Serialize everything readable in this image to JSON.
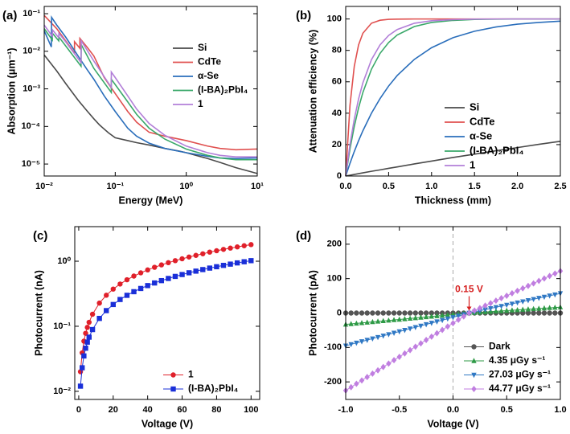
{
  "chart_data": [
    {
      "panel_label": "(a)",
      "type": "line",
      "xlabel": "Energy (MeV)",
      "ylabel": "Absorption (μm⁻¹)",
      "xlog": true,
      "ylog": true,
      "xlim": [
        0.01,
        10
      ],
      "ylim": [
        4.8e-06,
        0.156
      ],
      "xticks": [
        {
          "value": 0.01,
          "label": "10⁻²"
        },
        {
          "value": 0.1,
          "label": "10⁻¹"
        },
        {
          "value": 1,
          "label": "10⁰"
        },
        {
          "value": 10,
          "label": "10¹"
        }
      ],
      "yticks": [
        {
          "value": 1e-05,
          "label": "10⁻⁵"
        },
        {
          "value": 0.0001,
          "label": "10⁻⁴"
        },
        {
          "value": 0.001,
          "label": "10⁻³"
        },
        {
          "value": 0.01,
          "label": "10⁻²"
        },
        {
          "value": 0.1,
          "label": "10⁻¹"
        }
      ],
      "legend": "upper right",
      "series": [
        {
          "name": "Si",
          "color": "#4a4a4a",
          "x": [
            0.01,
            0.015,
            0.02,
            0.03,
            0.04,
            0.05,
            0.06,
            0.08,
            0.1,
            0.15,
            0.2,
            0.3,
            0.5,
            0.8,
            1,
            2,
            3,
            5,
            8,
            10
          ],
          "values": [
            0.008,
            0.003,
            0.0014,
            0.0005,
            0.00026,
            0.00016,
            0.00011,
            6.8e-05,
            5e-05,
            4.2e-05,
            3.7e-05,
            3.2e-05,
            2.6e-05,
            2.2e-05,
            2e-05,
            1.4e-05,
            1.1e-05,
            8e-06,
            6.3e-06,
            5.6e-06
          ]
        },
        {
          "name": "CdTe",
          "color": "#e0504f",
          "x": [
            0.01,
            0.015,
            0.02,
            0.0267,
            0.0267,
            0.0318,
            0.0318,
            0.04,
            0.05,
            0.07,
            0.1,
            0.15,
            0.2,
            0.3,
            0.5,
            1,
            2,
            3,
            5,
            10
          ],
          "values": [
            0.09,
            0.04,
            0.019,
            0.009,
            0.018,
            0.012,
            0.022,
            0.013,
            0.0075,
            0.002,
            0.00075,
            0.00025,
            0.00013,
            7e-05,
            5.5e-05,
            4.2e-05,
            3e-05,
            2.6e-05,
            2.4e-05,
            2.5e-05
          ]
        },
        {
          "name": "α-Se",
          "color": "#2a6ebb",
          "x": [
            0.01,
            0.0126,
            0.0127,
            0.015,
            0.02,
            0.03,
            0.04,
            0.05,
            0.07,
            0.1,
            0.15,
            0.2,
            0.3,
            0.5,
            1,
            2,
            3,
            5,
            10
          ],
          "values": [
            0.035,
            0.013,
            0.08,
            0.05,
            0.024,
            0.0075,
            0.0033,
            0.0018,
            0.00065,
            0.00025,
            9e-05,
            5.5e-05,
            3.6e-05,
            2.6e-05,
            2e-05,
            1.6e-05,
            1.45e-05,
            1.4e-05,
            1.45e-05
          ]
        },
        {
          "name": "(I-BA)₂PbI₄",
          "color": "#3aa86a",
          "x": [
            0.01,
            0.013,
            0.0131,
            0.016,
            0.0161,
            0.02,
            0.033,
            0.0332,
            0.05,
            0.088,
            0.0881,
            0.1,
            0.15,
            0.2,
            0.3,
            0.5,
            1,
            2,
            3,
            5,
            10
          ],
          "values": [
            0.04,
            0.02,
            0.03,
            0.019,
            0.024,
            0.014,
            0.004,
            0.015,
            0.0035,
            0.0008,
            0.0018,
            0.0013,
            0.00045,
            0.00021,
            9e-05,
            4.6e-05,
            2.5e-05,
            1.7e-05,
            1.45e-05,
            1.3e-05,
            1.3e-05
          ]
        },
        {
          "name": "1",
          "color": "#b27fd8",
          "x": [
            0.01,
            0.013,
            0.0131,
            0.016,
            0.0161,
            0.02,
            0.033,
            0.0332,
            0.05,
            0.088,
            0.0881,
            0.1,
            0.15,
            0.2,
            0.3,
            0.5,
            1,
            2,
            3,
            5,
            10
          ],
          "values": [
            0.05,
            0.025,
            0.037,
            0.023,
            0.03,
            0.018,
            0.005,
            0.019,
            0.0055,
            0.0011,
            0.0028,
            0.002,
            0.00065,
            0.00029,
            0.00012,
            5.8e-05,
            3e-05,
            2e-05,
            1.7e-05,
            1.55e-05,
            1.55e-05
          ]
        }
      ]
    },
    {
      "panel_label": "(b)",
      "type": "line",
      "xlabel": "Thickness (mm)",
      "ylabel": "Attenuation efficiency (%)",
      "xlim": [
        0,
        2.5
      ],
      "ylim": [
        0,
        108
      ],
      "xticks": [
        {
          "value": 0,
          "label": "0.0"
        },
        0.5,
        {
          "value": 1,
          "label": "1.0"
        },
        1.5,
        {
          "value": 2,
          "label": "2.0"
        },
        2.5
      ],
      "yticks": [
        0,
        20,
        40,
        60,
        80,
        100
      ],
      "legend": "lower right",
      "x": [
        0,
        0.05,
        0.1,
        0.15,
        0.2,
        0.3,
        0.4,
        0.5,
        0.6,
        0.8,
        1.0,
        1.25,
        1.5,
        1.75,
        2.0,
        2.25,
        2.5
      ],
      "series": [
        {
          "name": "Si",
          "color": "#4a4a4a",
          "values": [
            0,
            0.5,
            1.0,
            1.5,
            2.0,
            3.0,
            3.9,
            4.9,
            5.8,
            7.7,
            9.5,
            11.8,
            13.9,
            16.1,
            18.1,
            20.2,
            22.1
          ]
        },
        {
          "name": "CdTe",
          "color": "#e0504f",
          "values": [
            0,
            45.1,
            69.9,
            83.5,
            90.9,
            97.3,
            99.2,
            99.8,
            99.9,
            100,
            100,
            100,
            100,
            100,
            100,
            100,
            100
          ]
        },
        {
          "name": "α-Se",
          "color": "#2a6ebb",
          "values": [
            0,
            8.1,
            15.6,
            22.5,
            28.8,
            40.0,
            49.3,
            57.3,
            64.0,
            74.3,
            81.7,
            88.1,
            92.2,
            94.9,
            96.7,
            97.8,
            98.6
          ]
        },
        {
          "name": "(I-BA)₂PbI₄",
          "color": "#3aa86a",
          "values": [
            0,
            17.3,
            31.6,
            43.4,
            53.2,
            68.0,
            78.1,
            85.0,
            89.8,
            95.2,
            97.8,
            99.1,
            99.7,
            99.9,
            100,
            100,
            100
          ]
        },
        {
          "name": "1",
          "color": "#b27fd8",
          "values": [
            0,
            20.2,
            36.2,
            49.1,
            59.3,
            74.1,
            83.5,
            89.5,
            93.3,
            97.3,
            98.9,
            99.6,
            99.9,
            100,
            100,
            100,
            100
          ]
        }
      ]
    },
    {
      "panel_label": "(c)",
      "type": "line",
      "xlabel": "Voltage (V)",
      "ylabel": "Photocurrent (nA)",
      "ylog": true,
      "xlim": [
        -2.3,
        105
      ],
      "ylim": [
        0.0075,
        3.4
      ],
      "xticks": [
        0,
        20,
        40,
        60,
        80,
        100
      ],
      "yticks": [
        {
          "value": 0.01,
          "label": "10⁻²"
        },
        {
          "value": 0.1,
          "label": "10⁻¹"
        },
        {
          "value": 1,
          "label": "10⁰"
        }
      ],
      "legend": "lower right",
      "x": [
        1,
        2,
        3,
        4,
        5,
        6,
        8,
        12,
        16,
        20,
        24,
        28,
        32,
        36,
        40,
        44,
        48,
        52,
        56,
        60,
        64,
        68,
        72,
        76,
        80,
        84,
        88,
        92,
        96,
        100
      ],
      "series": [
        {
          "name": "1",
          "color": "#e0202a",
          "marker": "circle",
          "values": [
            0.02,
            0.039,
            0.059,
            0.078,
            0.096,
            0.115,
            0.153,
            0.227,
            0.3,
            0.373,
            0.446,
            0.519,
            0.591,
            0.663,
            0.735,
            0.807,
            0.878,
            0.95,
            1.02,
            1.09,
            1.16,
            1.23,
            1.3,
            1.38,
            1.45,
            1.52,
            1.59,
            1.66,
            1.73,
            1.8
          ]
        },
        {
          "name": "(I-BA)₂PbI₄",
          "color": "#1a2fd8",
          "marker": "square",
          "values": [
            0.012,
            0.023,
            0.035,
            0.046,
            0.057,
            0.068,
            0.089,
            0.132,
            0.174,
            0.216,
            0.258,
            0.299,
            0.34,
            0.381,
            0.422,
            0.463,
            0.503,
            0.543,
            0.584,
            0.624,
            0.664,
            0.704,
            0.744,
            0.784,
            0.823,
            0.863,
            0.902,
            0.942,
            0.981,
            1.02
          ]
        }
      ]
    },
    {
      "panel_label": "(d)",
      "type": "line",
      "xlabel": "Voltage (V)",
      "ylabel": "Photocurrent (pA)",
      "xlim": [
        -1,
        1
      ],
      "ylim": [
        -251,
        251
      ],
      "xticks": [
        {
          "value": -1,
          "label": "-1.0"
        },
        -0.5,
        {
          "value": 0,
          "label": "0.0"
        },
        0.5,
        {
          "value": 1,
          "label": "1.0"
        }
      ],
      "yticks": [
        -200,
        -100,
        0,
        100,
        200
      ],
      "legend": "lower right",
      "vline": 0,
      "annotations": [
        {
          "text": "0.15 V",
          "x": 0.15,
          "y": 0,
          "color": "#d62020"
        }
      ],
      "x": [
        -1,
        -0.95,
        -0.9,
        -0.85,
        -0.8,
        -0.75,
        -0.7,
        -0.65,
        -0.6,
        -0.55,
        -0.5,
        -0.45,
        -0.4,
        -0.35,
        -0.3,
        -0.25,
        -0.2,
        -0.15,
        -0.1,
        -0.05,
        0,
        0.05,
        0.1,
        0.15,
        0.2,
        0.25,
        0.3,
        0.35,
        0.4,
        0.45,
        0.5,
        0.55,
        0.6,
        0.65,
        0.7,
        0.75,
        0.8,
        0.85,
        0.9,
        0.95,
        1
      ],
      "series": [
        {
          "name": "Dark",
          "color": "#555555",
          "marker": "circle",
          "values": [
            0,
            0,
            0,
            0,
            0,
            0,
            0,
            0,
            0,
            0,
            0,
            0,
            0,
            0,
            0,
            0,
            0,
            0,
            0,
            0,
            0,
            0,
            0,
            0,
            0,
            0,
            0,
            0,
            0,
            0,
            0,
            0,
            0,
            0,
            0,
            0,
            0,
            0,
            0,
            0,
            0
          ]
        },
        {
          "name": "4.35 μGy s⁻¹",
          "color": "#2e9a46",
          "marker": "triangle-up",
          "values": [
            -33.0,
            -31.6,
            -30.1,
            -28.7,
            -27.3,
            -25.8,
            -24.4,
            -23.0,
            -21.5,
            -20.1,
            -18.7,
            -17.2,
            -15.8,
            -14.4,
            -12.9,
            -11.5,
            -10.0,
            -8.6,
            -7.2,
            -5.7,
            -4.3,
            -2.9,
            -1.4,
            0,
            1.0,
            2.0,
            3.0,
            4.0,
            5.0,
            6.0,
            7.0,
            8.0,
            9.0,
            10.0,
            11.0,
            12.0,
            13.0,
            14.0,
            15.0,
            16.0,
            17.0
          ]
        },
        {
          "name": "27.03 μGy s⁻¹",
          "color": "#2f78c4",
          "marker": "triangle-down",
          "values": [
            -95.0,
            -90.9,
            -86.7,
            -82.6,
            -78.5,
            -74.3,
            -70.2,
            -66.1,
            -62.0,
            -57.8,
            -53.7,
            -49.6,
            -45.4,
            -41.3,
            -37.2,
            -33.0,
            -28.9,
            -24.8,
            -20.7,
            -16.5,
            -12.4,
            -8.3,
            -4.1,
            0,
            3.4,
            6.7,
            10.1,
            13.4,
            16.8,
            20.1,
            23.5,
            26.8,
            30.2,
            33.5,
            36.9,
            40.2,
            43.6,
            46.9,
            50.3,
            53.6,
            57.0
          ]
        },
        {
          "name": "44.77 μGy s⁻¹",
          "color": "#c07ee0",
          "marker": "diamond",
          "values": [
            -225.1,
            -215.3,
            -205.5,
            -195.7,
            -185.9,
            -176.1,
            -166.3,
            -156.6,
            -146.8,
            -137.0,
            -127.2,
            -117.4,
            -107.6,
            -97.9,
            -88.1,
            -78.3,
            -68.5,
            -58.7,
            -48.9,
            -39.1,
            -29.4,
            -19.6,
            -9.8,
            0,
            7.2,
            14.4,
            21.5,
            28.7,
            35.9,
            43.1,
            50.2,
            57.4,
            64.6,
            71.8,
            78.9,
            86.1,
            93.3,
            100.5,
            107.6,
            114.8,
            122.0
          ]
        }
      ]
    }
  ]
}
